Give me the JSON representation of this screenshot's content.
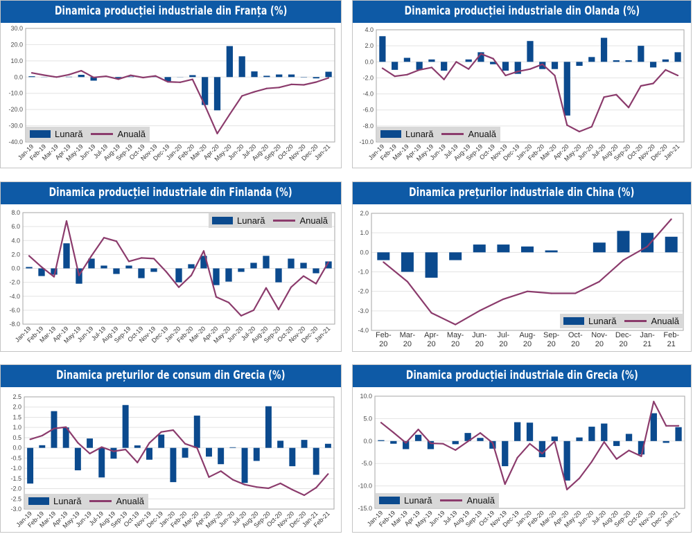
{
  "colors": {
    "title_band": "#0e5aa6",
    "bar": "#0b4a8e",
    "line": "#8b3b6c",
    "legend_bg": "#d8d8d8",
    "grid": "#e3e3e3",
    "axis": "#a6a6a6"
  },
  "chart_data": [
    {
      "type": "bar",
      "title": "Dinamica producției industriale din Franța (%)",
      "xlabel": "",
      "ylabel": "",
      "categories": [
        "Jan-19",
        "Feb-19",
        "Mar-19",
        "Apr-19",
        "May-19",
        "Jun-19",
        "Jul-19",
        "Aug-19",
        "Sep-19",
        "Oct-19",
        "Nov-19",
        "Dec-19",
        "Jan-20",
        "Feb-20",
        "Mar-20",
        "Apr-20",
        "May-20",
        "Jun-20",
        "Jul-20",
        "Aug-20",
        "Sep-20",
        "Oct-20",
        "Nov-20",
        "Dec-20",
        "Jan-21"
      ],
      "series": [
        {
          "name": "Lunară",
          "kind": "bar",
          "values": [
            0.5,
            -0.1,
            -0.2,
            0.2,
            1.4,
            -2.2,
            0.0,
            -0.8,
            0.3,
            -0.1,
            0.2,
            -2.6,
            -0.1,
            1.2,
            -17.2,
            -20.5,
            19.1,
            12.8,
            3.5,
            0.8,
            1.6,
            1.6,
            -0.2,
            -0.8,
            3.3
          ]
        },
        {
          "name": "Anuală",
          "kind": "line",
          "values": [
            2.6,
            1.2,
            0.0,
            1.5,
            3.9,
            -0.2,
            0.5,
            -1.3,
            1.1,
            -0.3,
            0.7,
            -2.9,
            -3.2,
            -1.4,
            -17.5,
            -34.8,
            -23.0,
            -11.6,
            -9.1,
            -7.0,
            -6.4,
            -4.5,
            -4.8,
            -3.1,
            -0.5
          ]
        }
      ],
      "ylim": [
        -40,
        30
      ],
      "yticks": [
        "30.0",
        "20.0",
        "10.0",
        "0.0",
        "-10.0",
        "-20.0",
        "-30.0",
        "-40.0"
      ],
      "grid": true,
      "legend": "bottom-left"
    },
    {
      "type": "bar",
      "title": "Dinamica producției industriale din Olanda (%)",
      "xlabel": "",
      "ylabel": "",
      "categories": [
        "Jan-19",
        "Feb-19",
        "Mar-19",
        "Apr-19",
        "May-19",
        "Jun-19",
        "Jul-19",
        "Aug-19",
        "Sep-19",
        "Oct-19",
        "Nov-19",
        "Dec-19",
        "Jan-20",
        "Feb-20",
        "Mar-20",
        "Apr-20",
        "May-20",
        "Jun-20",
        "Jul-20",
        "Aug-20",
        "Sep-20",
        "Oct-20",
        "Nov-20",
        "Dec-20",
        "Jan-21"
      ],
      "series": [
        {
          "name": "Lunară",
          "kind": "bar",
          "values": [
            3.2,
            -1.0,
            0.5,
            -1.0,
            0.3,
            -1.1,
            0.0,
            0.3,
            1.2,
            -0.3,
            -1.1,
            -1.5,
            2.6,
            -0.9,
            -0.9,
            -6.7,
            -0.5,
            0.6,
            3.0,
            0.2,
            0.2,
            2.0,
            -0.7,
            0.3,
            1.2
          ]
        },
        {
          "name": "Anuală",
          "kind": "line",
          "values": [
            -0.8,
            -1.8,
            -1.6,
            -1.0,
            -0.7,
            -2.2,
            0.0,
            -0.9,
            1.0,
            0.4,
            -1.7,
            -1.2,
            -0.9,
            -0.3,
            -1.7,
            -7.9,
            -8.7,
            -8.1,
            -4.4,
            -4.1,
            -5.7,
            -3.0,
            -2.7,
            -1.0,
            -1.7
          ]
        }
      ],
      "ylim": [
        -10,
        4
      ],
      "yticks": [
        "4.0",
        "2.0",
        "0.0",
        "-2.0",
        "-4.0",
        "-6.0",
        "-8.0",
        "-10.0"
      ],
      "grid": true,
      "legend": "bottom-left"
    },
    {
      "type": "bar",
      "title": "Dinamica producției industriale din Finlanda (%)",
      "xlabel": "",
      "ylabel": "",
      "categories": [
        "Jan-19",
        "Feb-19",
        "Mar-19",
        "Apr-19",
        "May-19",
        "Jun-19",
        "Jul-19",
        "Aug-19",
        "Sep-19",
        "Oct-19",
        "Nov-19",
        "Dec-19",
        "Jan-20",
        "Feb-20",
        "Mar-20",
        "Apr-20",
        "May-20",
        "Jun-20",
        "Jul-20",
        "Aug-20",
        "Sep-20",
        "Oct-20",
        "Nov-20",
        "Dec-20",
        "Jan-21"
      ],
      "series": [
        {
          "name": "Lunară",
          "kind": "bar",
          "values": [
            0.2,
            -1.1,
            -0.9,
            3.6,
            -2.2,
            1.4,
            0.4,
            -0.8,
            0.4,
            -1.4,
            -0.5,
            0.0,
            -2.0,
            0.6,
            1.8,
            -2.4,
            -1.9,
            -0.5,
            0.8,
            1.8,
            -2.0,
            1.4,
            0.8,
            -0.7,
            1.0
          ]
        },
        {
          "name": "Anuală",
          "kind": "line",
          "values": [
            1.8,
            0.2,
            -1.2,
            6.8,
            -1.0,
            1.8,
            4.4,
            3.9,
            1.0,
            1.5,
            1.4,
            -0.5,
            -2.7,
            -1.0,
            2.5,
            -4.1,
            -4.9,
            -6.8,
            -6.0,
            -2.8,
            -5.9,
            -2.7,
            -1.1,
            -2.2,
            0.9
          ]
        }
      ],
      "ylim": [
        -8,
        8
      ],
      "yticks": [
        "8.0",
        "6.0",
        "4.0",
        "2.0",
        "0.0",
        "-2.0",
        "-4.0",
        "-6.0",
        "-8.0"
      ],
      "grid": true,
      "legend": "top-right"
    },
    {
      "type": "bar",
      "title": "Dinamica prețurilor industriale din China (%)",
      "xlabel": "",
      "ylabel": "",
      "categories": [
        "Feb-\n20",
        "Mar-\n20",
        "Apr-\n20",
        "May-\n20",
        "Jun-\n20",
        "Jul-\n20",
        "Aug-\n20",
        "Sep-\n20",
        "Oct-\n20",
        "Nov-\n20",
        "Dec-\n20",
        "Jan-\n21",
        "Feb-\n21"
      ],
      "series": [
        {
          "name": "Lunară",
          "kind": "bar",
          "values": [
            -0.4,
            -1.0,
            -1.3,
            -0.4,
            0.4,
            0.4,
            0.3,
            0.1,
            0.0,
            0.5,
            1.1,
            1.0,
            0.8
          ]
        },
        {
          "name": "Anuală",
          "kind": "line",
          "values": [
            -0.5,
            -1.5,
            -3.1,
            -3.7,
            -3.0,
            -2.4,
            -2.0,
            -2.1,
            -2.1,
            -1.5,
            -0.4,
            0.3,
            1.7
          ]
        }
      ],
      "ylim": [
        -4,
        2
      ],
      "yticks": [
        "2.0",
        "1.0",
        "0.0",
        "-1.0",
        "-2.0",
        "-3.0",
        "-4.0"
      ],
      "grid": true,
      "legend": "bottom-right"
    },
    {
      "type": "bar",
      "title": "Dinamica prețurilor de consum din Grecia (%)",
      "xlabel": "",
      "ylabel": "",
      "categories": [
        "Jan-19",
        "Feb-19",
        "Mar-19",
        "Apr-19",
        "May-19",
        "Jun-19",
        "Jul-19",
        "Aug-19",
        "Sep-19",
        "Oct-19",
        "Nov-19",
        "Dec-19",
        "Jan-20",
        "Feb-20",
        "Mar-20",
        "Apr-20",
        "May-20",
        "Jun-20",
        "Jul-20",
        "Aug-20",
        "Sep-20",
        "Oct-20",
        "Nov-20",
        "Dec-20",
        "Jan-21",
        "Feb-21"
      ],
      "series": [
        {
          "name": "Lunară",
          "kind": "bar",
          "values": [
            -1.75,
            0.13,
            1.8,
            1.0,
            -1.1,
            0.46,
            -1.45,
            -0.53,
            2.1,
            0.12,
            -0.58,
            0.65,
            -1.68,
            -0.48,
            1.58,
            -0.43,
            -0.8,
            0.03,
            -1.72,
            -0.64,
            2.04,
            0.35,
            -0.9,
            0.39,
            -1.32,
            0.2
          ]
        },
        {
          "name": "Anuală",
          "kind": "line",
          "values": [
            0.42,
            0.6,
            0.95,
            1.02,
            0.25,
            -0.28,
            0.04,
            -0.17,
            -0.08,
            -0.72,
            0.24,
            0.78,
            0.87,
            0.2,
            0.0,
            -1.43,
            -1.14,
            -1.56,
            -1.8,
            -1.92,
            -1.98,
            -1.74,
            -2.05,
            -2.32,
            -1.95,
            -1.28
          ]
        }
      ],
      "ylim": [
        -3,
        2.5
      ],
      "yticks": [
        "2.5",
        "2.0",
        "1.5",
        "1.0",
        "0.5",
        "0.0",
        "-0.5",
        "-1.0",
        "-1.5",
        "-2.0",
        "-2.5",
        "-3.0"
      ],
      "grid": true,
      "legend": "bottom-left"
    },
    {
      "type": "bar",
      "title": "Dinamica producției industriale din Grecia (%)",
      "xlabel": "",
      "ylabel": "",
      "categories": [
        "Jan-19",
        "Feb-19",
        "Mar-19",
        "Apr-19",
        "May-19",
        "Jun-19",
        "Jul-19",
        "Aug-19",
        "Sep-19",
        "Oct-19",
        "Nov-19",
        "Dec-19",
        "Jan-20",
        "Feb-20",
        "Mar-20",
        "Apr-20",
        "May-20",
        "Jun-20",
        "Jul-20",
        "Aug-20",
        "Sep-20",
        "Oct-20",
        "Nov-20",
        "Dec-20",
        "Jan-21"
      ],
      "series": [
        {
          "name": "Lunară",
          "kind": "bar",
          "values": [
            0.2,
            -0.6,
            -1.8,
            1.4,
            -1.8,
            0.0,
            -0.7,
            1.8,
            0.7,
            -1.7,
            -5.6,
            4.2,
            4.1,
            -3.6,
            1.0,
            -8.8,
            0.8,
            3.2,
            3.9,
            -1.1,
            1.6,
            -3.0,
            6.2,
            -0.4,
            3.1
          ]
        },
        {
          "name": "Anuală",
          "kind": "line",
          "values": [
            4.1,
            1.9,
            -0.4,
            2.6,
            -0.5,
            -0.6,
            -2.0,
            -0.1,
            1.8,
            -0.4,
            -9.6,
            -3.7,
            -0.6,
            -2.8,
            -0.1,
            -10.8,
            -8.3,
            -4.6,
            -0.2,
            -4.0,
            -2.1,
            -3.4,
            8.8,
            3.4,
            3.4
          ]
        }
      ],
      "ylim": [
        -15,
        10
      ],
      "yticks": [
        "10.0",
        "5.0",
        "0.0",
        "-5.0",
        "-10.0",
        "-15.0"
      ],
      "grid": true,
      "legend": "bottom-left"
    }
  ]
}
